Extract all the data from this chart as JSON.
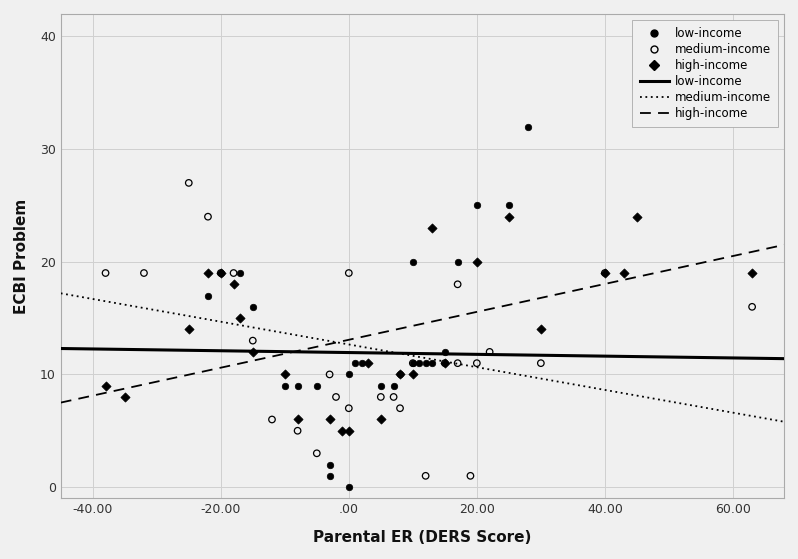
{
  "title": "",
  "xlabel": "Parental ER (DERS Score)",
  "ylabel": "ECBI Problem",
  "xlim": [
    -45,
    68
  ],
  "ylim": [
    -1,
    42
  ],
  "xticks": [
    -40,
    -20,
    0,
    20,
    40,
    60
  ],
  "xtick_labels": [
    "-40.00",
    "-20.00",
    ".00",
    "20.00",
    "40.00",
    "60.00"
  ],
  "yticks": [
    0,
    10,
    20,
    30,
    40
  ],
  "ytick_labels": [
    "0",
    "10",
    "20",
    "30",
    "40"
  ],
  "low_income_x": [
    -22,
    -20,
    -17,
    -15,
    -10,
    -8,
    -5,
    -3,
    -3,
    0,
    0,
    1,
    2,
    5,
    7,
    8,
    10,
    10,
    11,
    12,
    13,
    15,
    17,
    20,
    25,
    28
  ],
  "low_income_y": [
    17,
    19,
    19,
    16,
    9,
    9,
    9,
    2,
    1,
    0,
    10,
    11,
    11,
    9,
    9,
    10,
    11,
    20,
    11,
    11,
    11,
    12,
    20,
    25,
    25,
    32
  ],
  "medium_income_x": [
    -38,
    -32,
    -25,
    -22,
    -20,
    -18,
    -15,
    -12,
    -8,
    -5,
    -3,
    -2,
    0,
    0,
    5,
    7,
    8,
    10,
    12,
    15,
    17,
    17,
    19,
    20,
    22,
    30,
    40,
    63
  ],
  "medium_income_y": [
    19,
    19,
    27,
    24,
    19,
    19,
    13,
    6,
    5,
    3,
    10,
    8,
    19,
    7,
    8,
    8,
    7,
    11,
    1,
    11,
    18,
    11,
    1,
    11,
    12,
    11,
    19,
    16
  ],
  "high_income_x": [
    -38,
    -35,
    -25,
    -22,
    -20,
    -18,
    -17,
    -15,
    -10,
    -8,
    -3,
    -1,
    0,
    3,
    5,
    8,
    10,
    13,
    15,
    20,
    25,
    30,
    40,
    43,
    45,
    63
  ],
  "high_income_y": [
    9,
    8,
    14,
    19,
    19,
    18,
    15,
    12,
    10,
    6,
    6,
    5,
    5,
    11,
    6,
    10,
    10,
    23,
    11,
    20,
    24,
    14,
    19,
    19,
    24,
    19
  ],
  "low_line": {
    "x0": -45,
    "y0": 12.3,
    "x1": 68,
    "y1": 11.4
  },
  "medium_line": {
    "x0": -45,
    "y0": 17.2,
    "x1": 68,
    "y1": 5.8
  },
  "high_line": {
    "x0": -45,
    "y0": 7.5,
    "x1": 68,
    "y1": 21.5
  },
  "background_color": "#f0f0f0",
  "grid_color": "#d0d0d0",
  "point_color": "#000000"
}
